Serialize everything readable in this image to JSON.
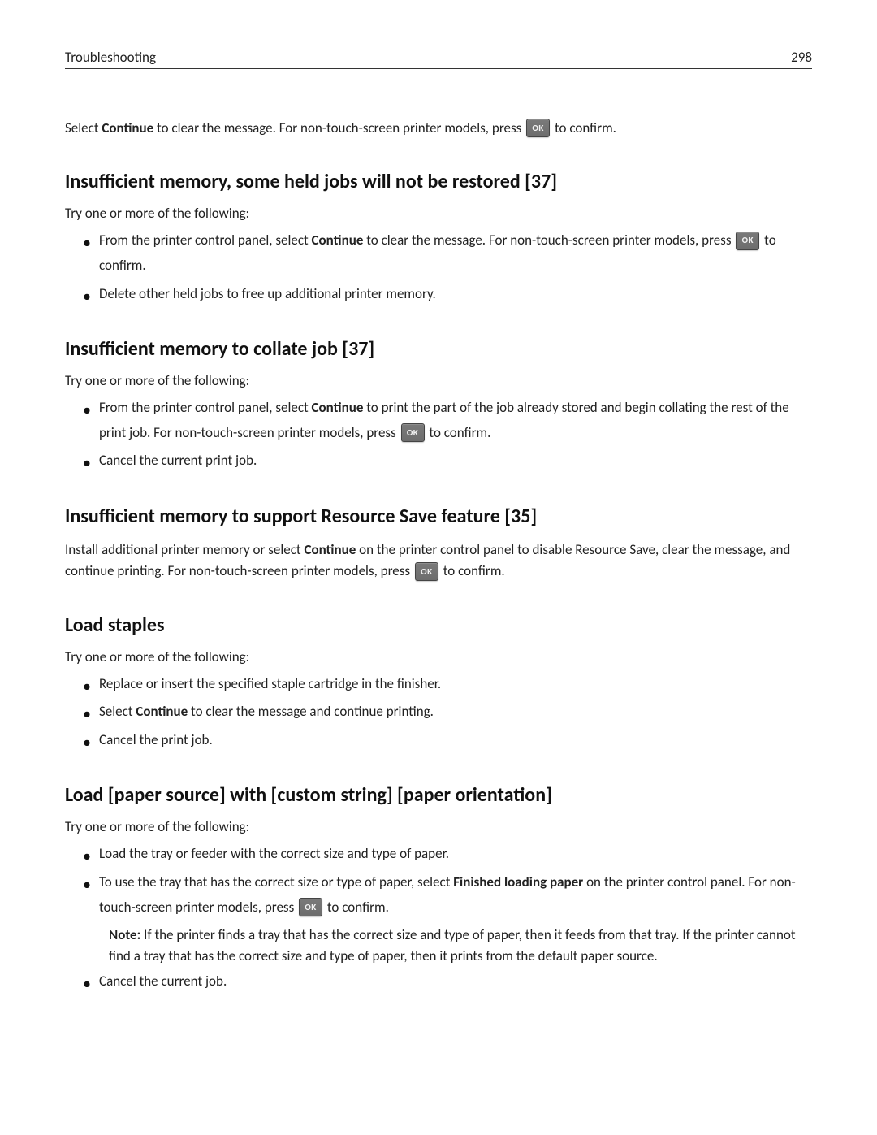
{
  "header": {
    "title": "Troubleshooting",
    "page_number": "298"
  },
  "ok_button_label": "OK",
  "intro_paragraph": {
    "pre": "Select ",
    "bold": "Continue",
    "mid": " to clear the message. For non-touch-screen printer models, press ",
    "post": " to confirm."
  },
  "sections": [
    {
      "id": "s1",
      "heading": "Insufficient memory, some held jobs will not be restored [37]",
      "intro": "Try one or more of the following:",
      "bullets": [
        {
          "type": "ok",
          "pre": "From the printer control panel, select ",
          "bold": "Continue",
          "mid": " to clear the message. For non-touch-screen printer models, press ",
          "post": " to confirm."
        },
        {
          "type": "plain",
          "text": "Delete other held jobs to free up additional printer memory."
        }
      ]
    },
    {
      "id": "s2",
      "heading": "Insufficient memory to collate job [37]",
      "intro": "Try one or more of the following:",
      "bullets": [
        {
          "type": "ok",
          "pre": "From the printer control panel, select ",
          "bold": "Continue",
          "mid": " to print the part of the job already stored and begin collating the rest of the print job. For non-touch-screen printer models, press ",
          "post": " to confirm."
        },
        {
          "type": "plain",
          "text": "Cancel the current print job."
        }
      ]
    },
    {
      "id": "s3",
      "heading": "Insufficient memory to support Resource Save feature [35]",
      "para": {
        "pre": "Install additional printer memory or select ",
        "bold": "Continue",
        "mid": " on the printer control panel to disable Resource Save, clear the message, and continue printing. For non-touch-screen printer models, press ",
        "post": " to confirm."
      }
    },
    {
      "id": "s4",
      "heading": "Load staples",
      "intro": "Try one or more of the following:",
      "bullets": [
        {
          "type": "plain",
          "text": "Replace or insert the specified staple cartridge in the finisher."
        },
        {
          "type": "bold_inline",
          "pre": "Select ",
          "bold": "Continue",
          "post": " to clear the message and continue printing."
        },
        {
          "type": "plain",
          "text": "Cancel the print job."
        }
      ]
    },
    {
      "id": "s5",
      "heading": "Load [paper source] with [custom string] [paper orientation]",
      "intro": "Try one or more of the following:",
      "bullets": [
        {
          "type": "plain",
          "text": "Load the tray or feeder with the correct size and type of paper."
        },
        {
          "type": "ok_with_note",
          "pre": "To use the tray that has the correct size or type of paper, select ",
          "bold": "Finished loading paper",
          "mid": " on the printer control panel. For non-touch-screen printer models, press ",
          "post": " to confirm.",
          "note_label": "Note:",
          "note_text": " If the printer finds a tray that has the correct size and type of paper, then it feeds from that tray. If the printer cannot find a tray that has the correct size and type of paper, then it prints from the default paper source."
        },
        {
          "type": "plain",
          "text": "Cancel the current job."
        }
      ]
    }
  ]
}
